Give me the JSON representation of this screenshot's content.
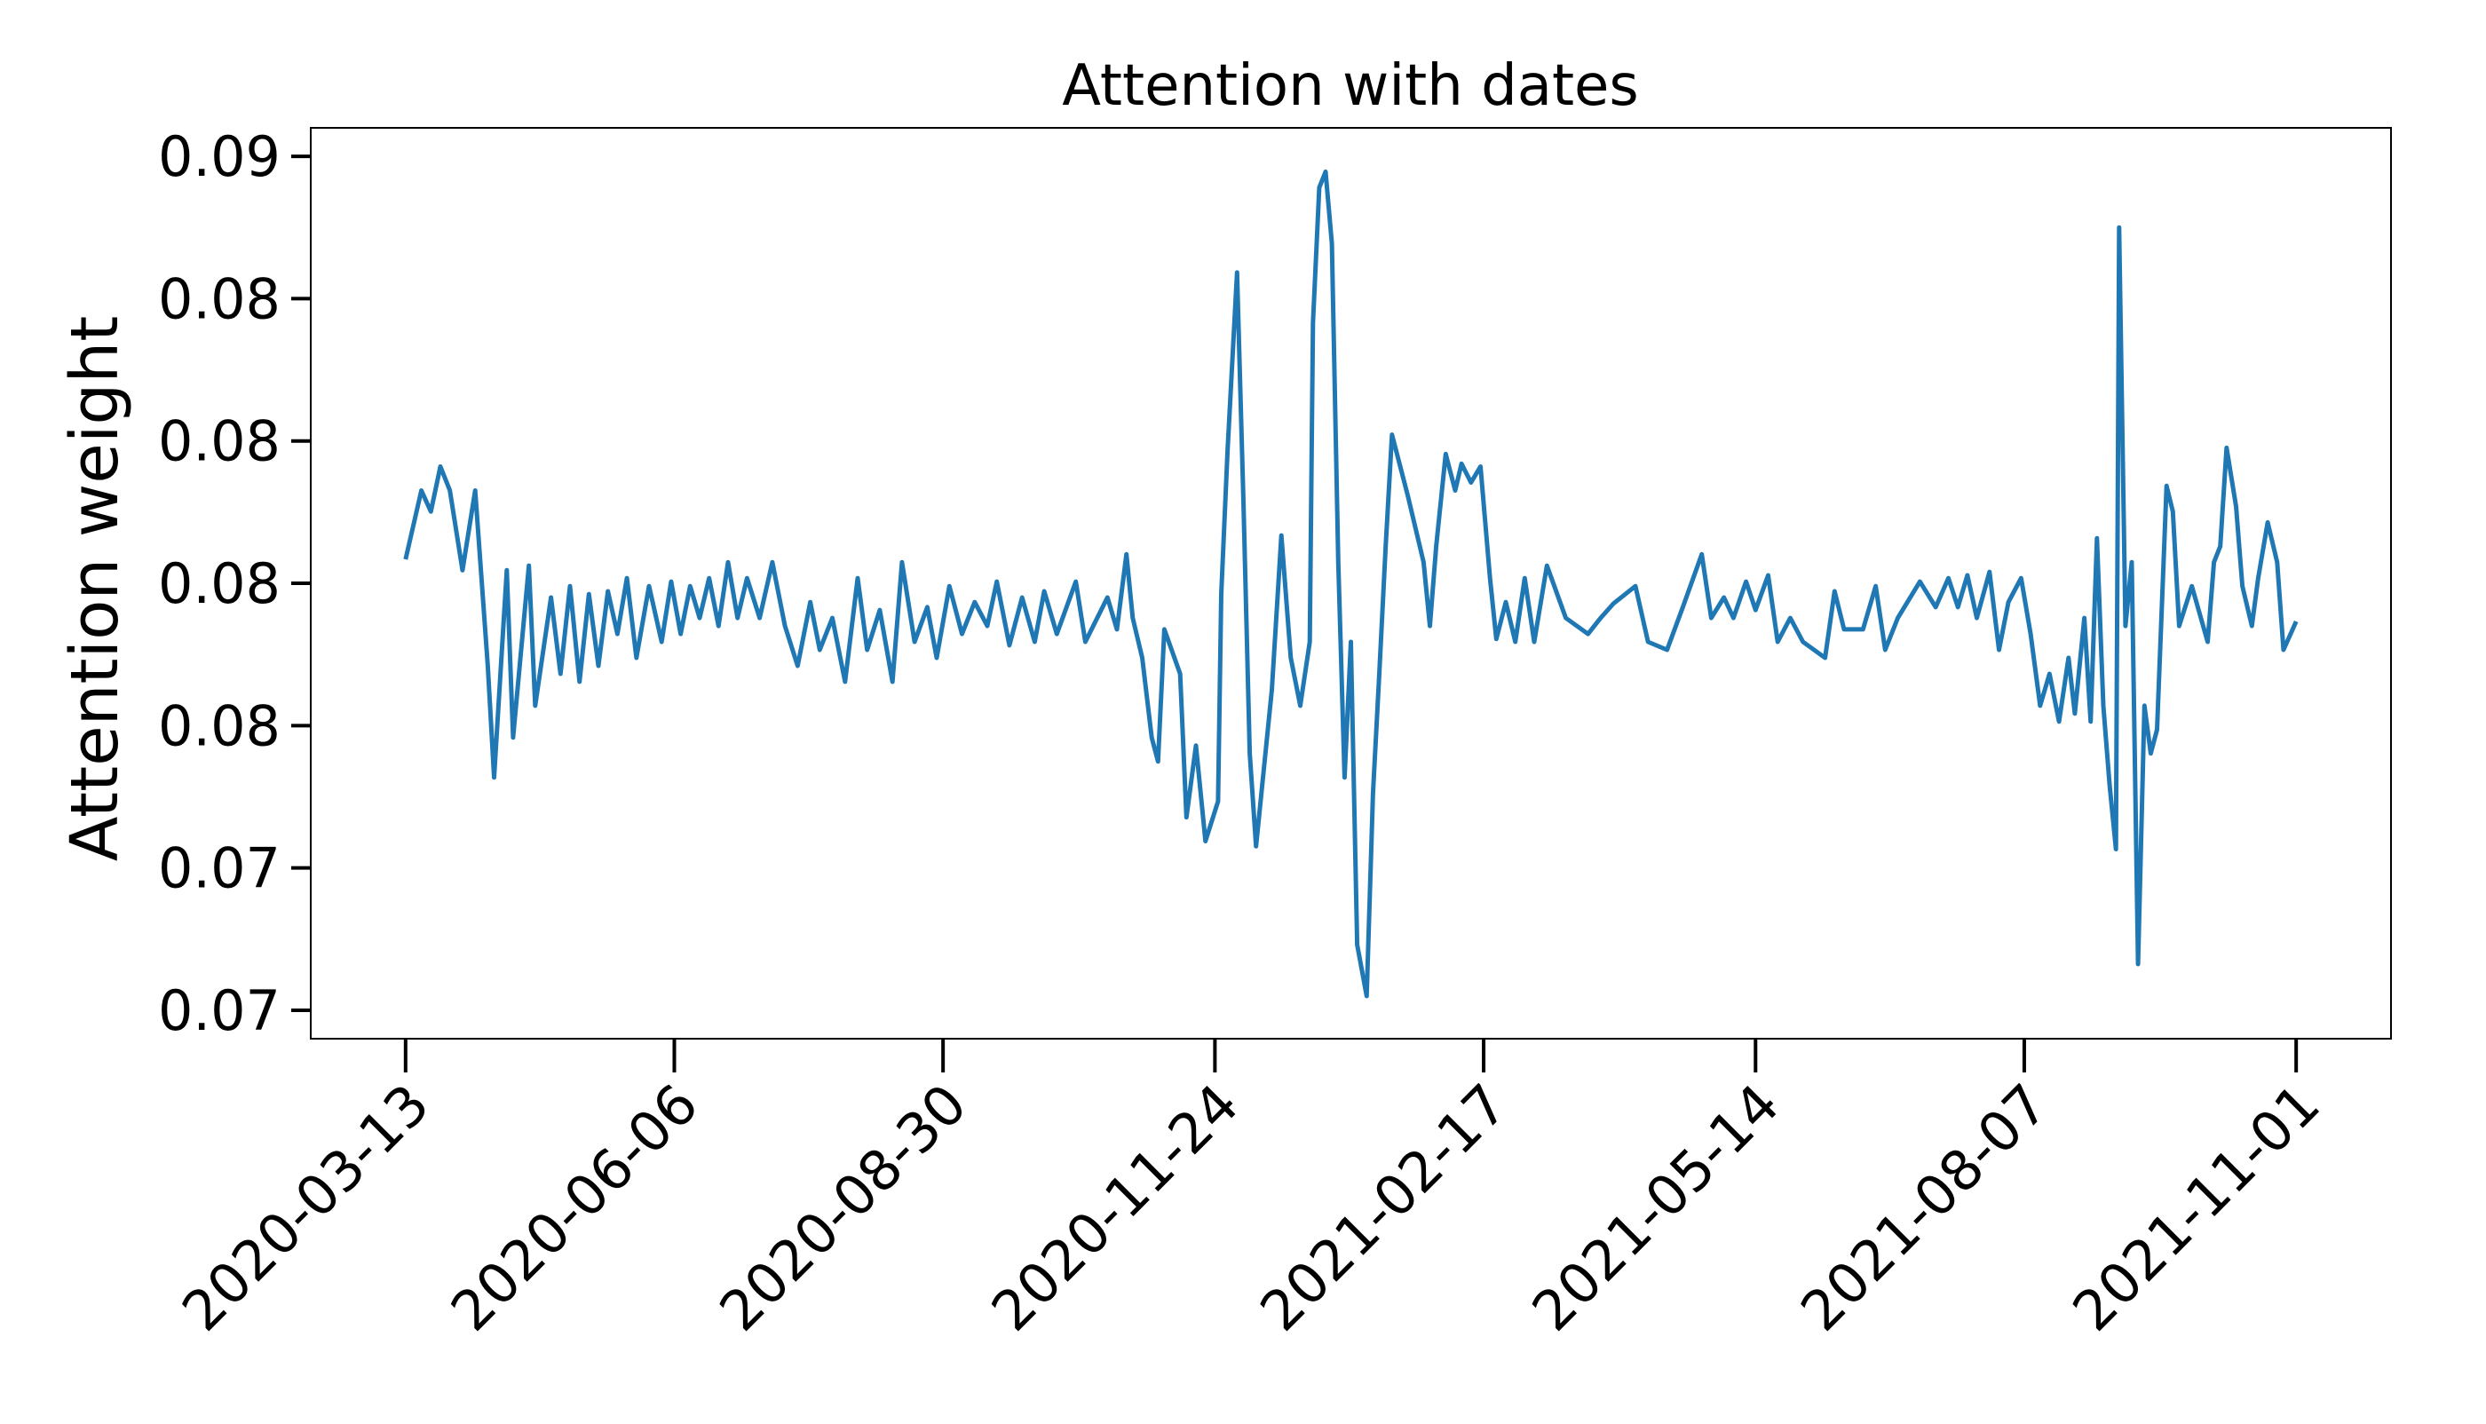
{
  "chart_data": {
    "type": "line",
    "title": "Attention with dates",
    "y_label": "Attention weight",
    "color": "#1f77b4",
    "xlim": [
      "2020-02-12",
      "2021-12-01"
    ],
    "xticks": [
      "2020-03-13",
      "2020-06-06",
      "2020-08-30",
      "2020-11-24",
      "2021-02-17",
      "2021-05-14",
      "2021-08-07",
      "2021-11-01"
    ],
    "ylim": [
      0.072,
      0.088
    ],
    "yticks": [
      {
        "value": 0.0725,
        "label": "0.07"
      },
      {
        "value": 0.075,
        "label": "0.07"
      },
      {
        "value": 0.0775,
        "label": "0.08"
      },
      {
        "value": 0.08,
        "label": "0.08"
      },
      {
        "value": 0.0825,
        "label": "0.08"
      },
      {
        "value": 0.085,
        "label": "0.08"
      },
      {
        "value": 0.0875,
        "label": "0.09"
      }
    ],
    "x": [
      "2020-03-13",
      "2020-03-18",
      "2020-03-21",
      "2020-03-24",
      "2020-03-27",
      "2020-03-31",
      "2020-04-04",
      "2020-04-08",
      "2020-04-10",
      "2020-04-14",
      "2020-04-16",
      "2020-04-21",
      "2020-04-23",
      "2020-04-28",
      "2020-05-01",
      "2020-05-04",
      "2020-05-07",
      "2020-05-10",
      "2020-05-13",
      "2020-05-16",
      "2020-05-19",
      "2020-05-22",
      "2020-05-25",
      "2020-05-29",
      "2020-06-02",
      "2020-06-05",
      "2020-06-08",
      "2020-06-11",
      "2020-06-14",
      "2020-06-17",
      "2020-06-20",
      "2020-06-23",
      "2020-06-26",
      "2020-06-29",
      "2020-07-03",
      "2020-07-07",
      "2020-07-11",
      "2020-07-15",
      "2020-07-19",
      "2020-07-22",
      "2020-07-26",
      "2020-07-30",
      "2020-08-03",
      "2020-08-06",
      "2020-08-10",
      "2020-08-14",
      "2020-08-17",
      "2020-08-21",
      "2020-08-25",
      "2020-08-28",
      "2020-09-01",
      "2020-09-05",
      "2020-09-09",
      "2020-09-13",
      "2020-09-16",
      "2020-09-20",
      "2020-09-24",
      "2020-09-28",
      "2020-10-01",
      "2020-10-05",
      "2020-10-11",
      "2020-10-14",
      "2020-10-21",
      "2020-10-24",
      "2020-10-27",
      "2020-10-29",
      "2020-11-01",
      "2020-11-04",
      "2020-11-06",
      "2020-11-08",
      "2020-11-13",
      "2020-11-15",
      "2020-11-18",
      "2020-11-21",
      "2020-11-25",
      "2020-11-26",
      "2020-11-28",
      "2020-12-01",
      "2020-12-03",
      "2020-12-05",
      "2020-12-07",
      "2020-12-12",
      "2020-12-15",
      "2020-12-18",
      "2020-12-21",
      "2020-12-24",
      "2020-12-25",
      "2020-12-27",
      "2020-12-29",
      "2020-12-31",
      "2021-01-02",
      "2021-01-04",
      "2021-01-06",
      "2021-01-08",
      "2021-01-11",
      "2021-01-13",
      "2021-01-15",
      "2021-01-17",
      "2021-01-19",
      "2021-01-24",
      "2021-01-29",
      "2021-01-31",
      "2021-02-02",
      "2021-02-05",
      "2021-02-08",
      "2021-02-10",
      "2021-02-13",
      "2021-02-16",
      "2021-02-19",
      "2021-02-21",
      "2021-02-24",
      "2021-02-27",
      "2021-03-02",
      "2021-03-05",
      "2021-03-09",
      "2021-03-15",
      "2021-03-22",
      "2021-03-26",
      "2021-03-30",
      "2021-04-06",
      "2021-04-10",
      "2021-04-16",
      "2021-04-21",
      "2021-04-27",
      "2021-04-30",
      "2021-05-04",
      "2021-05-07",
      "2021-05-11",
      "2021-05-14",
      "2021-05-18",
      "2021-05-21",
      "2021-05-25",
      "2021-05-29",
      "2021-06-05",
      "2021-06-08",
      "2021-06-11",
      "2021-06-17",
      "2021-06-21",
      "2021-06-24",
      "2021-06-28",
      "2021-07-05",
      "2021-07-10",
      "2021-07-14",
      "2021-07-17",
      "2021-07-20",
      "2021-07-23",
      "2021-07-27",
      "2021-07-30",
      "2021-08-02",
      "2021-08-06",
      "2021-08-09",
      "2021-08-12",
      "2021-08-15",
      "2021-08-18",
      "2021-08-21",
      "2021-08-23",
      "2021-08-26",
      "2021-08-28",
      "2021-08-30",
      "2021-09-01",
      "2021-09-03",
      "2021-09-05",
      "2021-09-06",
      "2021-09-08",
      "2021-09-10",
      "2021-09-12",
      "2021-09-14",
      "2021-09-16",
      "2021-09-18",
      "2021-09-21",
      "2021-09-23",
      "2021-09-25",
      "2021-09-29",
      "2021-10-04",
      "2021-10-06",
      "2021-10-08",
      "2021-10-10",
      "2021-10-13",
      "2021-10-15",
      "2021-10-18",
      "2021-10-20",
      "2021-10-23",
      "2021-10-26",
      "2021-10-28",
      "2021-11-01"
    ],
    "values": [
      0.08042,
      0.08163,
      0.08126,
      0.08205,
      0.08163,
      0.08023,
      0.08163,
      0.07855,
      0.07659,
      0.08023,
      0.07729,
      0.08031,
      0.07785,
      0.07975,
      0.07841,
      0.07995,
      0.07827,
      0.07981,
      0.07855,
      0.07986,
      0.07911,
      0.08009,
      0.07869,
      0.07995,
      0.07897,
      0.08003,
      0.07911,
      0.07995,
      0.07939,
      0.08009,
      0.07925,
      0.08037,
      0.07939,
      0.08009,
      0.07939,
      0.08037,
      0.07925,
      0.07855,
      0.07967,
      0.07883,
      0.07939,
      0.07827,
      0.08009,
      0.07883,
      0.07953,
      0.07827,
      0.08037,
      0.07897,
      0.07958,
      0.07869,
      0.07995,
      0.07911,
      0.07967,
      0.07925,
      0.08003,
      0.07891,
      0.07975,
      0.07897,
      0.07986,
      0.07911,
      0.08003,
      0.07897,
      0.07975,
      0.07919,
      0.08051,
      0.07939,
      0.07869,
      0.07729,
      0.07687,
      0.07919,
      0.07841,
      0.07589,
      0.07715,
      0.07547,
      0.07617,
      0.07981,
      0.08233,
      0.08546,
      0.08149,
      0.07701,
      0.07538,
      0.07813,
      0.08084,
      0.07869,
      0.07785,
      0.07897,
      0.08457,
      0.08695,
      0.08723,
      0.08597,
      0.08037,
      0.07659,
      0.07897,
      0.07365,
      0.07275,
      0.07631,
      0.07841,
      0.08065,
      0.08261,
      0.08154,
      0.08037,
      0.07925,
      0.08065,
      0.08227,
      0.08163,
      0.0821,
      0.08177,
      0.08205,
      0.08009,
      0.07902,
      0.07967,
      0.07897,
      0.08009,
      0.07897,
      0.08031,
      0.07939,
      0.07911,
      0.07939,
      0.07964,
      0.07995,
      0.07897,
      0.07883,
      0.07958,
      0.08051,
      0.07939,
      0.07975,
      0.07939,
      0.08003,
      0.07953,
      0.08014,
      0.07897,
      0.07939,
      0.07897,
      0.07869,
      0.07986,
      0.07919,
      0.07919,
      0.07995,
      0.07883,
      0.07939,
      0.08003,
      0.07958,
      0.08009,
      0.07958,
      0.08014,
      0.07939,
      0.0802,
      0.07883,
      0.07967,
      0.08009,
      0.07911,
      0.07785,
      0.07841,
      0.07757,
      0.07869,
      0.07771,
      0.07939,
      0.07757,
      0.08079,
      0.07785,
      0.07645,
      0.07533,
      0.08625,
      0.07925,
      0.08037,
      0.07331,
      0.07785,
      0.07701,
      0.07743,
      0.08171,
      0.08126,
      0.07925,
      0.07995,
      0.07897,
      0.08037,
      0.08065,
      0.08238,
      0.08135,
      0.07995,
      0.07925,
      0.08009,
      0.08107,
      0.08037,
      0.07883,
      0.07933
    ]
  }
}
